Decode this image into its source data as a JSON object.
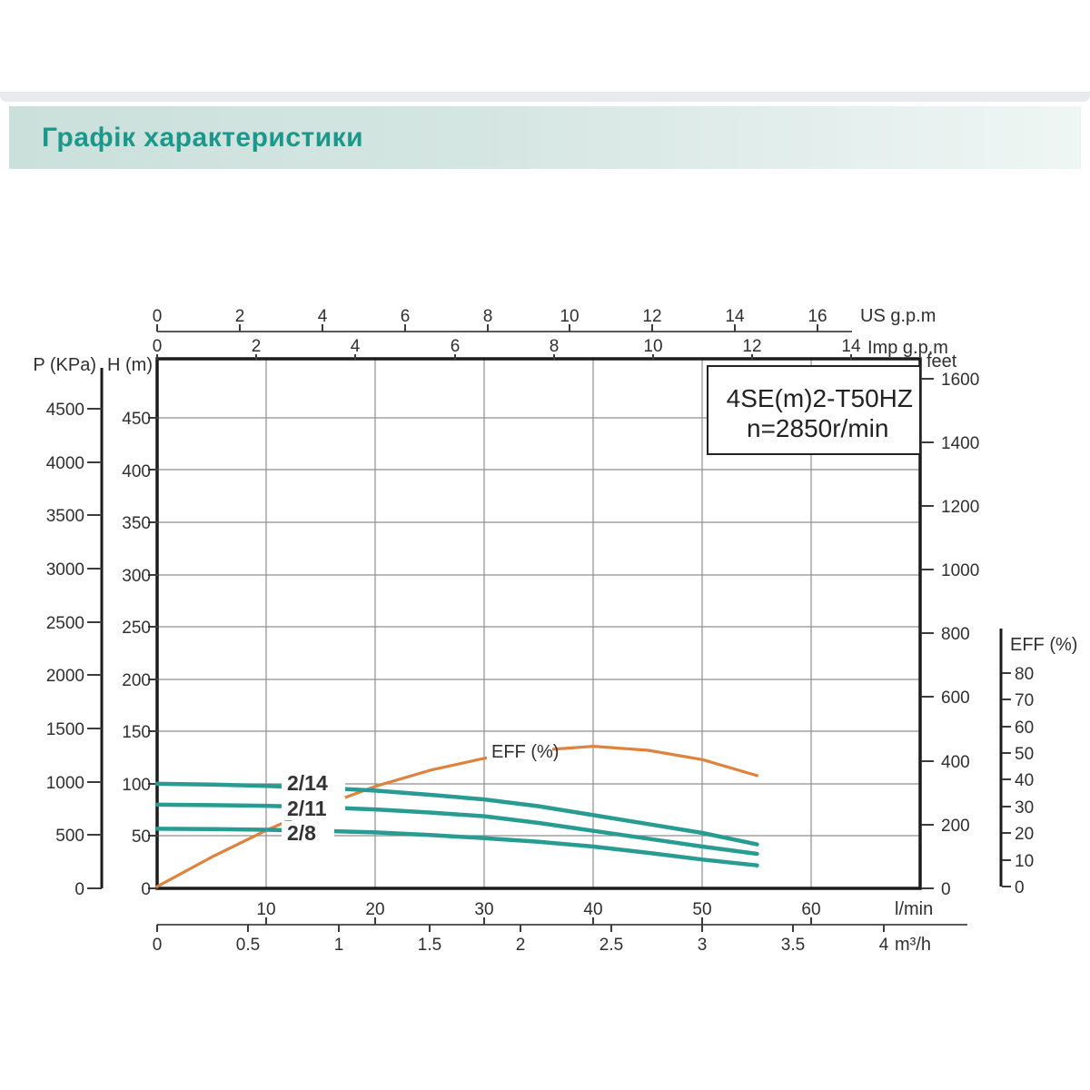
{
  "header": {
    "title": "Графік характеристики"
  },
  "chart_data": {
    "type": "line",
    "title": "4SE(m)2-T50HZ",
    "subtitle": "n=2850r/min",
    "eff_curve_label": "EFF (%)",
    "x_axis": {
      "unit": "l/min",
      "range": [
        0,
        70
      ],
      "gridline_step": 10
    },
    "y_axis": {
      "unit": "H (m)",
      "range": [
        0,
        505
      ],
      "gridline_step": 50
    },
    "legend_position": "on-curve",
    "grid": true,
    "series": [
      {
        "name": "2/14",
        "kind": "head",
        "color": "#289b92",
        "q_lmin": [
          0,
          5,
          10,
          15,
          20,
          25,
          30,
          35,
          40,
          45,
          50,
          55
        ],
        "head_m": [
          100,
          99.3,
          98,
          96.2,
          93.5,
          89.5,
          85,
          78.5,
          70,
          61.5,
          53,
          42
        ]
      },
      {
        "name": "2/11",
        "kind": "head",
        "color": "#289b92",
        "q_lmin": [
          0,
          5,
          10,
          15,
          20,
          25,
          30,
          35,
          40,
          45,
          50,
          55
        ],
        "head_m": [
          80,
          79.6,
          79,
          77.5,
          75.5,
          72.5,
          69,
          62.5,
          55,
          47.5,
          40,
          33
        ]
      },
      {
        "name": "2/8",
        "kind": "head",
        "color": "#289b92",
        "q_lmin": [
          0,
          5,
          10,
          15,
          20,
          25,
          30,
          35,
          40,
          45,
          50,
          55
        ],
        "head_m": [
          57,
          56.6,
          56,
          55,
          53.5,
          51,
          48,
          44.5,
          40,
          34,
          27.5,
          22
        ]
      },
      {
        "name": "EFF (%)",
        "kind": "efficiency",
        "color": "#de823e",
        "q_lmin": [
          0,
          5,
          10,
          15,
          20,
          25,
          30,
          35,
          40,
          45,
          50,
          55
        ],
        "eff_pct": [
          0,
          11,
          21,
          30,
          37.5,
          43.5,
          48,
          51,
          52.5,
          51,
          47.5,
          41.5
        ]
      }
    ],
    "axes": {
      "us_gpm": {
        "label": "US g.p.m",
        "ticks": [
          "0",
          "2",
          "4",
          "6",
          "8",
          "10",
          "12",
          "14",
          "16"
        ]
      },
      "imp_gpm": {
        "label": "Imp g.p.m",
        "ticks": [
          "0",
          "2",
          "4",
          "6",
          "8",
          "10",
          "12",
          "14"
        ]
      },
      "h_m": {
        "label": "H (m)",
        "ticks": [
          "450",
          "400",
          "350",
          "300",
          "250",
          "200",
          "150",
          "100",
          "50",
          "0"
        ]
      },
      "p_kpa": {
        "label": "P (KPa)",
        "ticks": [
          "4500",
          "4000",
          "3500",
          "3000",
          "2500",
          "2000",
          "1500",
          "1000",
          "500",
          "0"
        ]
      },
      "feet": {
        "label": "feet",
        "ticks": [
          "1600",
          "1400",
          "1200",
          "1000",
          "800",
          "600",
          "400",
          "200",
          "0"
        ]
      },
      "eff": {
        "label": "EFF (%)",
        "ticks": [
          "80",
          "70",
          "60",
          "50",
          "40",
          "30",
          "20",
          "10",
          "0"
        ]
      },
      "l_min": {
        "label": "l/min",
        "ticks": [
          "10",
          "20",
          "30",
          "40",
          "50",
          "60"
        ]
      },
      "m3_h": {
        "label": "m³/h",
        "ticks": [
          "0",
          "0.5",
          "1",
          "1.5",
          "2",
          "2.5",
          "3",
          "3.5",
          "4"
        ]
      }
    }
  }
}
